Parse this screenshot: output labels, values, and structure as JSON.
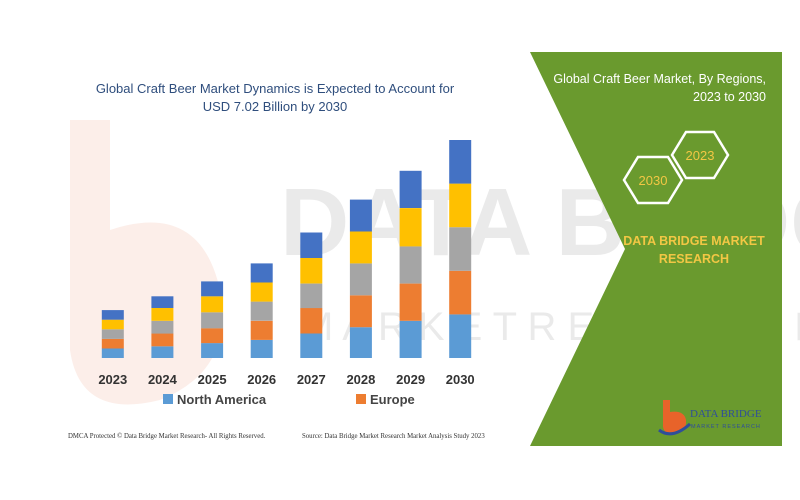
{
  "header": {
    "title_line1": "Global Craft Beer Market Dynamics is Expected to Account for",
    "title_line2": "USD 7.02 Billion by 2030"
  },
  "watermark": {
    "text": "DATA BRIDGE",
    "subtext": "M A R K E T   R E S E A R C H"
  },
  "right_panel": {
    "title_line1": "Global Craft Beer Market, By Regions,",
    "title_line2": "2023 to 2030",
    "hex_labels": [
      "2030",
      "2023"
    ],
    "brand_line1": "DATA BRIDGE MARKET",
    "brand_line2": "RESEARCH",
    "logo_line1": "DATA BRIDGE",
    "logo_line2": "MARKET RESEARCH",
    "bg_color": "#6a9a2e",
    "accent_color": "#f2c744"
  },
  "footer": {
    "left": "DMCA Protected © Data Bridge Market Research- All Rights Reserved.",
    "right": "Source: Data Bridge Market Research Market Analysis Study 2023"
  },
  "chart_data": {
    "type": "bar",
    "stacked": true,
    "title": "Global Craft Beer Market Dynamics is Expected to Account for USD 7.02 Billion by 2030",
    "categories": [
      "2023",
      "2024",
      "2025",
      "2026",
      "2027",
      "2028",
      "2029",
      "2030"
    ],
    "series": [
      {
        "name": "North America",
        "color": "#5b9bd5",
        "values": [
          9,
          11,
          14,
          17,
          23,
          29,
          35,
          41
        ]
      },
      {
        "name": "Europe",
        "color": "#ed7d31",
        "values": [
          9,
          12,
          14,
          18,
          24,
          30,
          35,
          41
        ]
      },
      {
        "name": "",
        "color": "#a5a5a5",
        "values": [
          9,
          12,
          15,
          18,
          23,
          30,
          35,
          41
        ]
      },
      {
        "name": "",
        "color": "#ffc000",
        "values": [
          9,
          12,
          15,
          18,
          24,
          30,
          36,
          41
        ]
      },
      {
        "name": "",
        "color": "#4472c4",
        "values": [
          9,
          11,
          14,
          18,
          24,
          30,
          35,
          41
        ]
      }
    ],
    "ylim": [
      0,
      205
    ],
    "legend_position": "bottom",
    "grid": false
  }
}
